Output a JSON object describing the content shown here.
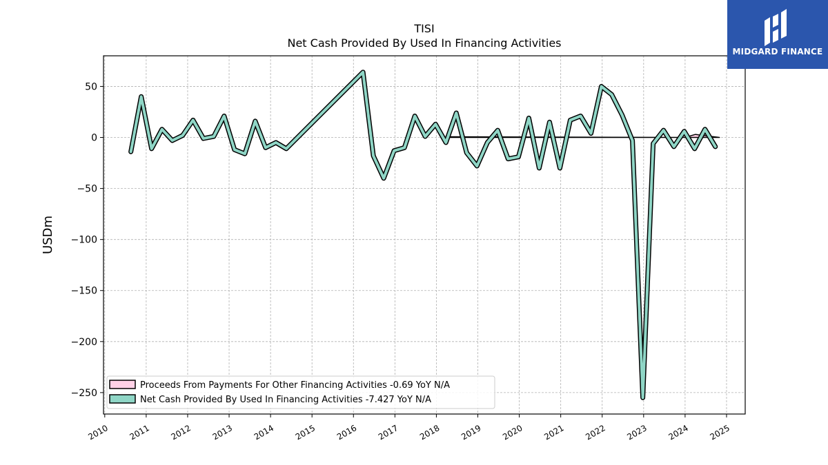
{
  "brand": {
    "name": "MIDGARD FINANCE",
    "bg_color": "#2b56ad"
  },
  "chart_data": {
    "type": "line",
    "title": "TISI",
    "subtitle": "Net Cash Provided By Used In Financing Activities",
    "xlabel": "",
    "ylabel": "USDm",
    "xlim": [
      2009.97,
      2025.45
    ],
    "ylim": [
      -271,
      80
    ],
    "x_ticks": [
      2010,
      2011,
      2012,
      2013,
      2014,
      2015,
      2016,
      2017,
      2018,
      2019,
      2020,
      2021,
      2022,
      2023,
      2024,
      2025
    ],
    "y_ticks": [
      50,
      0,
      -50,
      -100,
      -150,
      -200,
      -250
    ],
    "y_tick_labels": [
      "50",
      "0",
      "−50",
      "−100",
      "−150",
      "−200",
      "−250"
    ],
    "grid": true,
    "legend_position": "lower-left",
    "series": [
      {
        "name": "Proceeds From Payments For Other Financing Activities",
        "legend_label": "Proceeds From Payments For Other Financing Activities  -0.69 YoY N/A",
        "color": "#ffd1e6",
        "style": "area",
        "x": [
          2018.25,
          2024.0,
          2024.25,
          2024.5,
          2024.83
        ],
        "y": [
          0.7,
          0.0,
          3.0,
          1.6,
          0.0
        ]
      },
      {
        "name": "Net Cash Provided By Used In Financing Activities",
        "legend_label": "Net Cash Provided By Used In Financing Activities  -7.427 YoY N/A",
        "color": "#8fd6c6",
        "style": "line",
        "x": [
          2010.63,
          2010.88,
          2011.13,
          2011.38,
          2011.63,
          2011.88,
          2012.13,
          2012.38,
          2012.63,
          2012.88,
          2013.13,
          2013.38,
          2013.63,
          2013.88,
          2014.13,
          2014.38,
          2016.23,
          2016.48,
          2016.73,
          2016.98,
          2017.23,
          2017.48,
          2017.73,
          2017.98,
          2018.23,
          2018.48,
          2018.73,
          2018.98,
          2019.23,
          2019.48,
          2019.73,
          2019.98,
          2020.23,
          2020.48,
          2020.73,
          2020.98,
          2021.23,
          2021.48,
          2021.73,
          2021.98,
          2022.23,
          2022.48,
          2022.73,
          2022.98,
          2023.23,
          2023.48,
          2023.73,
          2023.98,
          2024.23,
          2024.48,
          2024.73
        ],
        "y": [
          -14,
          40,
          -11,
          8,
          -3,
          2,
          17,
          -1,
          1,
          21,
          -12,
          -16,
          16,
          -10,
          -5,
          -11,
          64,
          -18,
          -40,
          -13,
          -10,
          21,
          1,
          13,
          -5,
          24,
          -15,
          -28,
          -5,
          7,
          -21,
          -19,
          19,
          -30,
          15,
          -30,
          17,
          21,
          4,
          50,
          42,
          22,
          -3,
          -255,
          -6,
          7,
          -9,
          6,
          -11,
          8,
          -9
        ]
      }
    ]
  }
}
